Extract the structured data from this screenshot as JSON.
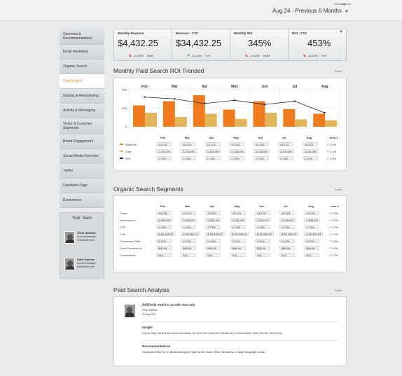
{
  "header": {
    "welcome": "Welcome",
    "logout": "Log Out",
    "date_range": "Aug 24 - Previous 6 Months"
  },
  "sidebar": {
    "items": [
      {
        "label": "Overview & Recommendations"
      },
      {
        "label": "Email Marketing"
      },
      {
        "label": "Organic Search"
      },
      {
        "label": "Paid Search"
      },
      {
        "label": "Display & Remarketing"
      },
      {
        "label": "Activity & Messaging"
      },
      {
        "label": "Visitor & Customer Segments"
      },
      {
        "label": "Brand Engagement"
      },
      {
        "label": "Social Media Overview"
      },
      {
        "label": "Twitter"
      },
      {
        "label": "Facebook Page"
      },
      {
        "label": "Ecommerce"
      }
    ]
  },
  "team": {
    "title": "Your Team",
    "members": [
      {
        "name": "Chris Sullivan",
        "role": "Account Manager",
        "email": "chris@artel.com"
      },
      {
        "name": "Katie Sachse",
        "role": "Account Manager",
        "email": "katie@artel.com"
      }
    ]
  },
  "kpis": [
    {
      "label": "Monthly Revenue",
      "value": "$4,432.25",
      "change": "-14.10%",
      "period": "MoM",
      "direction": "down"
    },
    {
      "label": "Revenue - YTD",
      "value": "$34,432.25",
      "change": "-14.10%",
      "period": "YoY",
      "direction": "up"
    },
    {
      "label": "Monthly ROI",
      "value": "345%",
      "change": "-14.10%",
      "period": "MoM",
      "direction": "down"
    },
    {
      "label": "ROI - YTD",
      "value": "453%",
      "change": "-14.10%",
      "period": "YoY",
      "direction": "down"
    }
  ],
  "roi_section": {
    "title": "Monthly Paid Search ROI Trended",
    "export": "Export"
  },
  "chart_data": {
    "type": "bar",
    "categories": [
      "Feb",
      "Mar",
      "Apr",
      "May",
      "Jun",
      "Jul",
      "Aug"
    ],
    "ylim": [
      0,
      400
    ],
    "yticks": [
      "400",
      "200",
      "0"
    ],
    "series": [
      {
        "name": "Revenue",
        "values": [
          230,
          275,
          340,
          185,
          275,
          190,
          140
        ],
        "color": "#f07a1e"
      },
      {
        "name": "Cost",
        "values": [
          150,
          105,
          140,
          85,
          150,
          80,
          70
        ],
        "color": "#e3b55a"
      },
      {
        "name": "ROI",
        "values": [
          320,
          300,
          250,
          285,
          240,
          275,
          150
        ],
        "color": "#222222"
      }
    ]
  },
  "roi_table": {
    "months": [
      "Feb",
      "Mar",
      "Apr",
      "May",
      "Jun",
      "Jul",
      "Aug"
    ],
    "mm_header": "m/m-1",
    "rows": [
      {
        "label": "Revenue",
        "cells": [
          "43,123",
          "43,123",
          "43,123",
          "43,123",
          "43,123",
          "43,123",
          "43,123"
        ],
        "mm": "2.3%"
      },
      {
        "label": "Cost",
        "cells": [
          "2,234.4%",
          "2,234.4%",
          "2,234.4%",
          "2,234.4%",
          "2,234.4%",
          "2,234.4%",
          "2,234.4%"
        ],
        "mm": "2.1%"
      },
      {
        "label": "ROI",
        "cells": [
          "1.73%",
          "1.73%",
          "1.73%",
          "1.73%",
          "1.73%",
          "1.73%",
          "1.73%"
        ],
        "mm": "2.1%"
      }
    ]
  },
  "organic_section": {
    "title": "Organic Search Segments",
    "export": "Export"
  },
  "organic_table": {
    "months": [
      "Feb",
      "Mar",
      "Apr",
      "May",
      "Jun",
      "Jul",
      "Aug"
    ],
    "mm_header": "m/m-1",
    "rows": [
      {
        "label": "Clicks",
        "cells": [
          "43,123",
          "43,123",
          "43,123",
          "43,123",
          "43,123",
          "43,123",
          "43,123"
        ],
        "mm": "2.3%"
      },
      {
        "label": "Impressions",
        "cells": [
          "2,234.4%",
          "2,234.4%",
          "2,234.4%",
          "2,234.4%",
          "2,234.4%",
          "2,234.4%",
          "2,234.4%"
        ],
        "mm": "1.3%"
      },
      {
        "label": "CTR",
        "cells": [
          "1.73%",
          "1.73%",
          "1.73%",
          "1.73%",
          "1.73%",
          "1.73%",
          "1.73%"
        ],
        "mm": "2.4%"
      },
      {
        "label": "Cost",
        "cells": [
          "$ 35,436.23",
          "$ 35,436.23",
          "$ 35,436.23",
          "$ 35,436.23",
          "$ 35,436.23",
          "$ 35,436.23",
          "$ 35,436.23"
        ],
        "mm": "1.3%"
      },
      {
        "label": "Conversion Rate",
        "cells": [
          "2.12%",
          "2.12%",
          "2.12%",
          "2.12%",
          "2.12%",
          "2.12%",
          "2.12%"
        ],
        "mm": "1.8%"
      },
      {
        "label": "Cost/Conversions",
        "cells": [
          "$36.34",
          "$36.34",
          "$36.34",
          "$36.34",
          "$36.34",
          "$36.34",
          "$36.34"
        ],
        "mm": "1.5%"
      },
      {
        "label": "Conversions",
        "cells": [
          "913",
          "913",
          "913",
          "913",
          "913",
          "913",
          "913"
        ],
        "mm": "1.2%"
      }
    ]
  },
  "analysis_section": {
    "title": "Paid Search Analysis",
    "export": "Export"
  },
  "analysis": {
    "headline": "AdWords metrics up with new ads",
    "author": "Chris Sullivan",
    "date": "23 Aug 2011",
    "insight_label": "Insight",
    "insight_text": "Far far way, behind the word mountains, far from the countries Vokalia and Consonantia, there live the blind texts.",
    "rec_label": "Recommendations",
    "rec_text": "Separated they live in Bookmarksgrove right at the coast of the Semantics, a large language ocean."
  }
}
